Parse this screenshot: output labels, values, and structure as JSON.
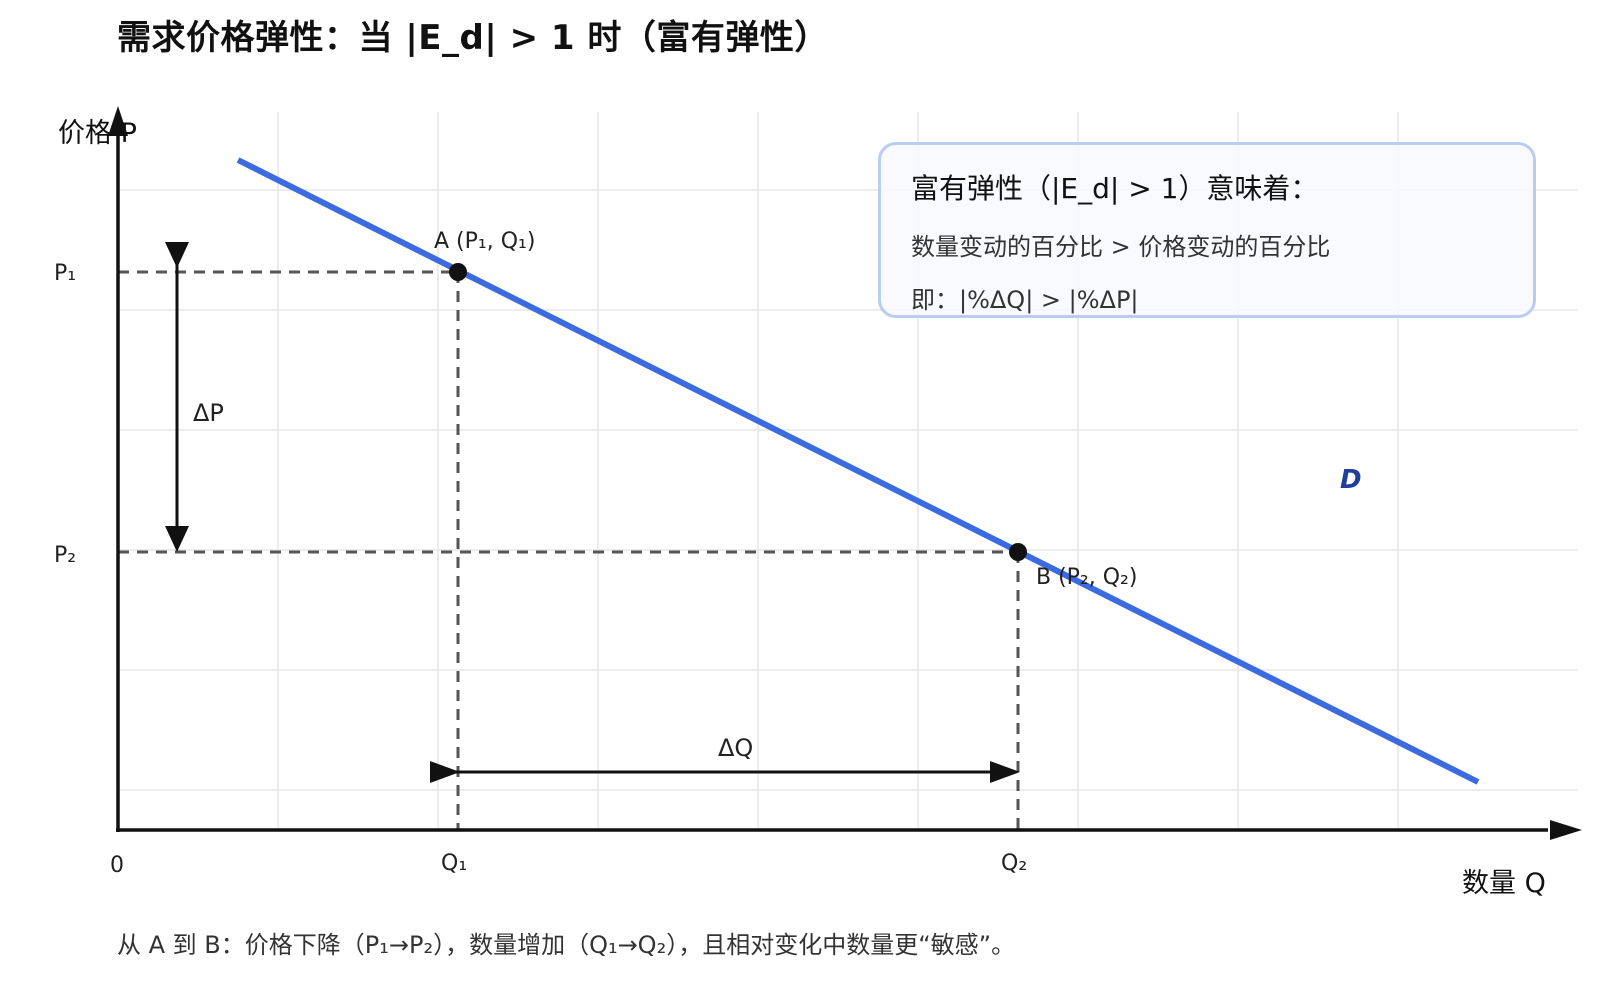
{
  "title": "需求价格弹性：当 |E_d| > 1 时（富有弹性）",
  "axes": {
    "y_label": "价格 P",
    "x_label": "数量 Q",
    "origin_label": "0"
  },
  "ticks": {
    "p1": "P₁",
    "p2": "P₂",
    "q1": "Q₁",
    "q2": "Q₂"
  },
  "points": {
    "a_label": "A (P₁, Q₁)",
    "b_label": "B (P₂, Q₂)"
  },
  "deltas": {
    "dp": "ΔP",
    "dq": "ΔQ"
  },
  "curve": {
    "label": "D",
    "color": "#3c6be0"
  },
  "info": {
    "title": "富有弹性（|E_d| > 1）意味着：",
    "line1": "数量变动的百分比 > 价格变动的百分比",
    "line2": "即：|%ΔQ| > |%ΔP|"
  },
  "caption": "从 A 到 B：价格下降（P₁→P₂），数量增加（Q₁→Q₂），且相对变化中数量更“敏感”。"
}
